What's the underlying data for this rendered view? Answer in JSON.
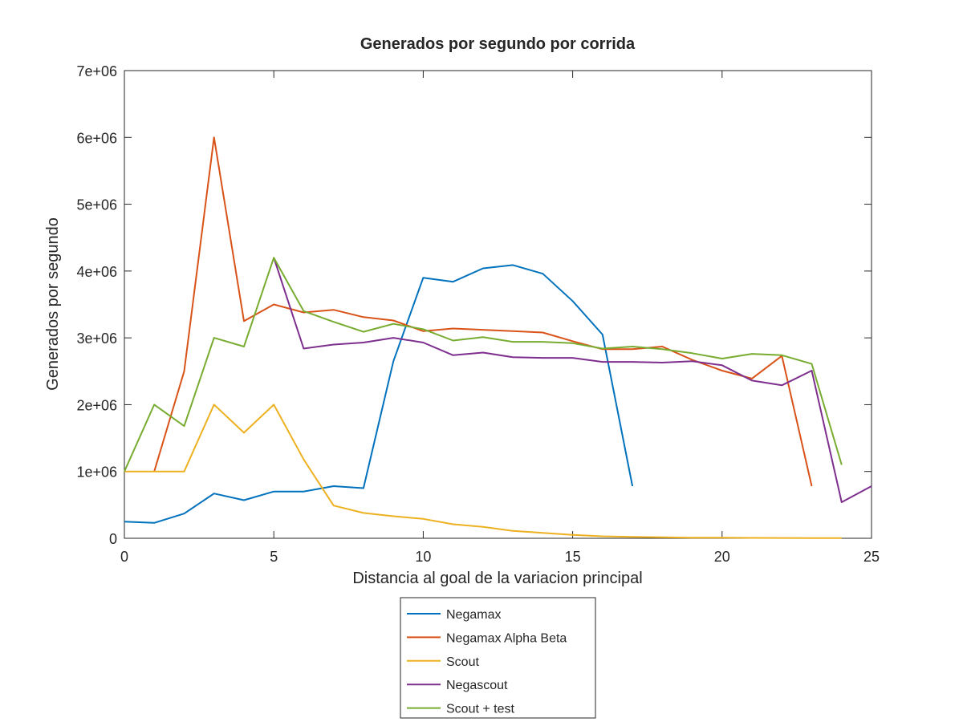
{
  "chart_data": {
    "type": "line",
    "title": "Generados por segundo por corrida",
    "xlabel": "Distancia al goal de la variacion principal",
    "ylabel": "Generados por segundo",
    "xlim": [
      0,
      25
    ],
    "ylim": [
      0,
      7000000
    ],
    "xticks": [
      0,
      5,
      10,
      15,
      20,
      25
    ],
    "xtick_labels": [
      "0",
      "5",
      "10",
      "15",
      "20",
      "25"
    ],
    "yticks": [
      0,
      1000000,
      2000000,
      3000000,
      4000000,
      5000000,
      6000000,
      7000000
    ],
    "ytick_labels": [
      "0",
      "1e+06",
      "2e+06",
      "3e+06",
      "4e+06",
      "5e+06",
      "6e+06",
      "7e+06"
    ],
    "grid": false,
    "legend_position": "below plot, centered",
    "series": [
      {
        "name": "Negamax",
        "color": "#0072BD",
        "x": [
          0,
          1,
          2,
          3,
          4,
          5,
          6,
          7,
          8,
          9,
          10,
          11,
          12,
          13,
          14,
          15,
          16,
          17
        ],
        "y": [
          250000,
          230000,
          370000,
          670000,
          570000,
          700000,
          700000,
          780000,
          750000,
          2650000,
          3900000,
          3840000,
          4040000,
          4090000,
          3960000,
          3550000,
          3050000,
          780000
        ]
      },
      {
        "name": "Negamax Alpha Beta",
        "color": "#D95319",
        "x": [
          1,
          2,
          3,
          4,
          5,
          6,
          7,
          8,
          9,
          10,
          11,
          12,
          13,
          14,
          15,
          16,
          17,
          18,
          19,
          20,
          21,
          22,
          23
        ],
        "y": [
          1000000,
          2500000,
          6000000,
          3250000,
          3500000,
          3380000,
          3420000,
          3310000,
          3260000,
          3100000,
          3140000,
          3120000,
          3100000,
          3080000,
          2950000,
          2830000,
          2830000,
          2870000,
          2670000,
          2510000,
          2390000,
          2730000,
          780000
        ]
      },
      {
        "name": "Scout",
        "color": "#EDB120",
        "x": [
          0,
          1,
          2,
          3,
          4,
          5,
          6,
          7,
          8,
          9,
          10,
          11,
          12,
          13,
          14,
          15,
          16,
          17,
          18,
          19,
          20,
          21,
          22,
          23,
          24
        ],
        "y": [
          1000000,
          1000000,
          1000000,
          2000000,
          1580000,
          2000000,
          1180000,
          490000,
          380000,
          330000,
          290000,
          210000,
          170000,
          110000,
          80000,
          50000,
          30000,
          20000,
          15000,
          10000,
          8000,
          6000,
          5000,
          4000,
          3000
        ]
      },
      {
        "name": "Negascout",
        "color": "#7E2F8E",
        "x": [
          5,
          6,
          7,
          8,
          9,
          10,
          11,
          12,
          13,
          14,
          15,
          16,
          17,
          18,
          19,
          20,
          21,
          22,
          23,
          24,
          25
        ],
        "y": [
          4200000,
          2840000,
          2900000,
          2930000,
          3000000,
          2930000,
          2740000,
          2780000,
          2710000,
          2700000,
          2700000,
          2640000,
          2640000,
          2630000,
          2650000,
          2590000,
          2360000,
          2290000,
          2510000,
          540000,
          780000
        ]
      },
      {
        "name": "Scout + test",
        "color": "#77AC30",
        "x": [
          0,
          1,
          2,
          3,
          4,
          5,
          6,
          7,
          8,
          9,
          10,
          11,
          12,
          13,
          14,
          15,
          16,
          17,
          18,
          19,
          20,
          21,
          22,
          23,
          24
        ],
        "y": [
          1000000,
          2000000,
          1680000,
          3000000,
          2870000,
          4200000,
          3400000,
          3240000,
          3090000,
          3210000,
          3130000,
          2960000,
          3010000,
          2940000,
          2940000,
          2920000,
          2840000,
          2870000,
          2830000,
          2770000,
          2690000,
          2760000,
          2740000,
          2610000,
          1100000
        ]
      }
    ]
  }
}
